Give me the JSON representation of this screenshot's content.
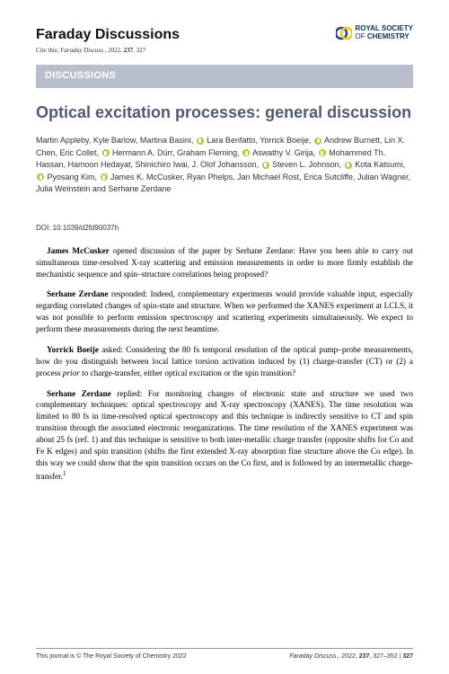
{
  "header": {
    "journal": "Faraday Discussions",
    "cite_prefix": "Cite this: ",
    "cite_journal": "Faraday Discuss., ",
    "cite_rest": "2022, ",
    "cite_vol": "237",
    "cite_page": ", 327",
    "publisher_top": "ROYAL SOCIETY",
    "publisher_bottom": "OF CHEMISTRY"
  },
  "section_label": "DISCUSSIONS",
  "title": "Optical excitation processes: general discussion",
  "authors_html": "Martin Appleby, Kyle Barlow, Martina Basini, <orcid></orcid> Lara Benfatto, Yorrick Boeije, <orcid></orcid> Andrew Burnett, Lin X. Chen, Eric Collet, <orcid></orcid> Hermann A. Dürr, Graham Fleming, <orcid></orcid> Aswathy V. Girija, <orcid></orcid> Mohammed Th. Hassan, Hamoon Hedayat, Shinichiro Iwai, J. Olof Johansson, <orcid></orcid> Steven L. Johnson, <orcid></orcid> Kota Katsumi, <orcid></orcid> Pyosang Kim, <orcid></orcid> James K. McCusker, Ryan Phelps, Jan Michael Rost, Erica Sutcliffe, Julian Wagner, Julia Weinstein and Serhane Zerdane",
  "doi": "DOI: 10.1039/d2fd90037h",
  "paragraphs": [
    "<span class=\"bold\">James McCusker</span> opened discussion of the paper by Serhane Zerdane: Have you been able to carry out simultaneous time-resolved X-ray scattering and emission measurements in order to more firmly establish the mechanistic sequence and spin–structure correlations being proposed?",
    "<span class=\"bold\">Serhane Zerdane</span> responded: Indeed, complementary experiments would provide valuable input, especially regarding correlated changes of spin-state and structure. When we performed the XANES experiment at LCLS, it was not possible to perform emission spectroscopy and scattering experiments simultaneously. We expect to perform these measurements during the next beamtime.",
    "<span class=\"bold\">Yorrick Boeije</span> asked: Considering the 80 fs temporal resolution of the optical pump–probe measurements, how do you distinguish between local lattice torsion activation induced by (1) charge-transfer (CT) or (2) a process <span class=\"ital\">prior</span> to charge-transfer, either optical excitation or the spin transition?",
    "<span class=\"bold\">Serhane Zerdane</span> replied: For monitoring changes of electronic state and structure we used two complementary techniques: optical spectroscopy and X-ray spectroscopy (XANES). The time resolution was limited to 80 fs in time-resolved optical spectroscopy and this technique is indirectly sensitive to CT and spin transition through the associated electronic reorganizations. The time resolution of the XANES experiment was about 25 fs (ref. 1) and this technique is sensitive to both inter-metallic charge transfer (opposite shifts for Co and Fe K edges) and spin transition (shifts the first extended X-ray absorption fine structure above the Co edge). In this way we could show that the spin transition occurs on the Co first, and is followed by an intermetallic charge-transfer.<sup>1</sup>"
  ],
  "footer": {
    "left": "This journal is © The Royal Society of Chemistry 2022",
    "right_journal": "Faraday Discuss., ",
    "right_year": "2022, ",
    "right_vol": "237",
    "right_pages": ", 327–352 | ",
    "pagenum": "327"
  },
  "logo_colors": {
    "blue": "#2b3e8b",
    "yellow": "#f5c518"
  }
}
